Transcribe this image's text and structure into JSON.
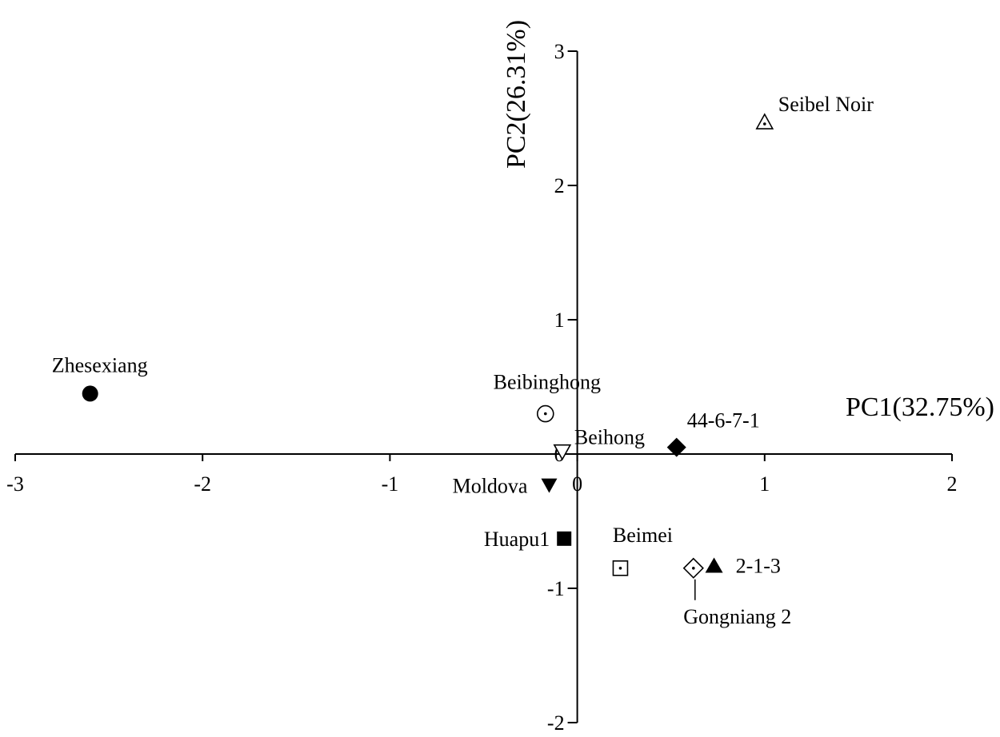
{
  "chart_data": {
    "type": "scatter",
    "title": "",
    "xlabel": "PC1(32.75%)",
    "ylabel": "PC2(26.31%)",
    "xlim": [
      -3,
      2
    ],
    "ylim": [
      -2,
      3
    ],
    "x_ticks": [
      -3,
      -2,
      -1,
      0,
      1,
      2
    ],
    "y_ticks": [
      -2,
      -1,
      1,
      2,
      3
    ],
    "y_zero_label": "0",
    "grid": false,
    "series": [
      {
        "label": "Zhesexiang",
        "x": -2.6,
        "y": 0.45,
        "marker": "filled-circle"
      },
      {
        "label": "Beibinghong",
        "x": -0.17,
        "y": 0.3,
        "marker": "dotted-circle"
      },
      {
        "label": "Beihong",
        "x": -0.08,
        "y": 0.02,
        "marker": "open-down-triangle"
      },
      {
        "label": "44-6-7-1",
        "x": 0.53,
        "y": 0.05,
        "marker": "filled-diamond"
      },
      {
        "label": "Moldova",
        "x": -0.15,
        "y": -0.23,
        "marker": "filled-down-triangle"
      },
      {
        "label": "Huapu1",
        "x": -0.07,
        "y": -0.63,
        "marker": "filled-square"
      },
      {
        "label": "Beimei",
        "x": 0.23,
        "y": -0.85,
        "marker": "dotted-square"
      },
      {
        "label": "Gongniang 2",
        "x": 0.62,
        "y": -0.85,
        "marker": "dotted-diamond"
      },
      {
        "label": "2-1-3",
        "x": 0.73,
        "y": -0.83,
        "marker": "filled-up-triangle"
      },
      {
        "label": "Seibel Noir",
        "x": 1.0,
        "y": 2.47,
        "marker": "dotted-up-triangle"
      }
    ]
  }
}
